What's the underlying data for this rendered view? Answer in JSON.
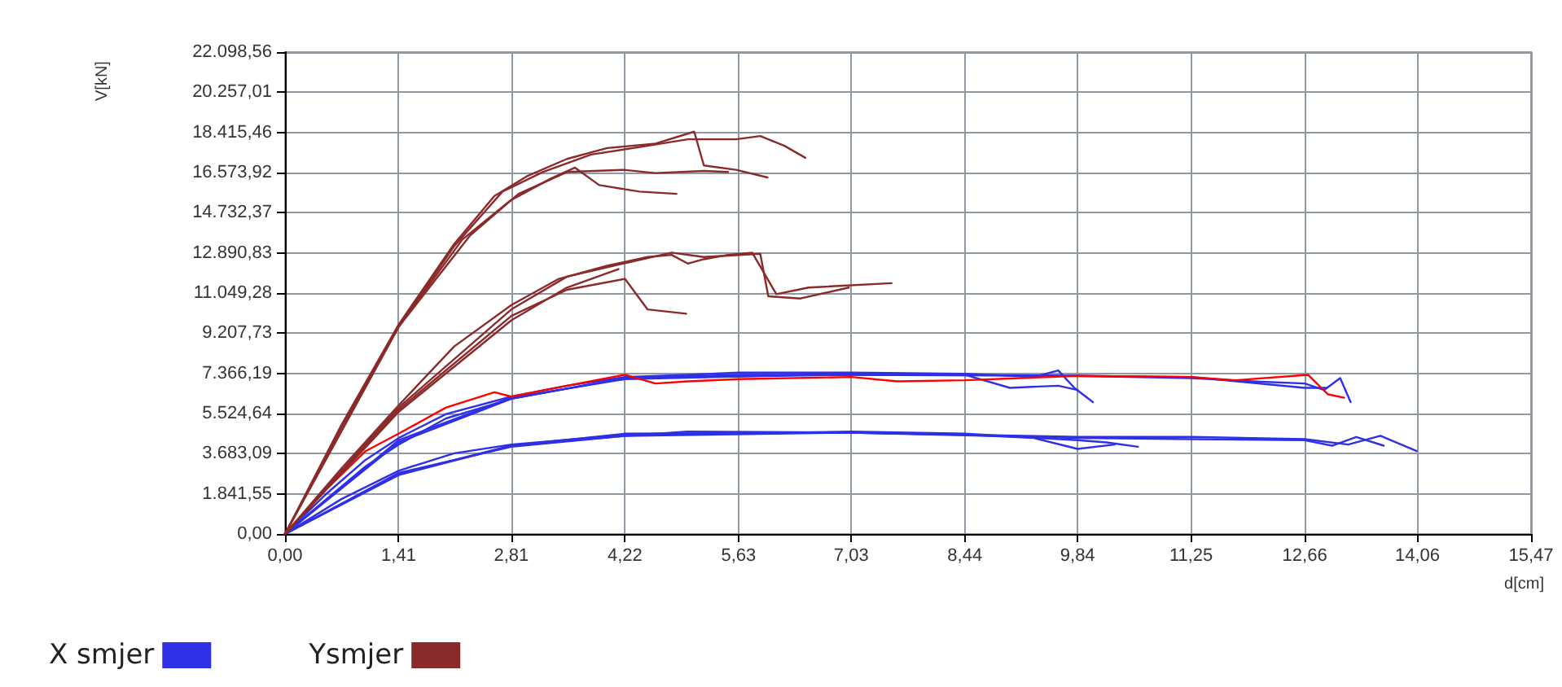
{
  "chart_data": {
    "type": "line",
    "xlabel": "d[cm]",
    "ylabel": "V[kN]",
    "xlim": [
      0,
      15.47
    ],
    "ylim": [
      0,
      22098.56
    ],
    "xticks": [
      {
        "value": 0,
        "label": "0,00"
      },
      {
        "value": 1.41,
        "label": "1,41"
      },
      {
        "value": 2.81,
        "label": "2,81"
      },
      {
        "value": 4.22,
        "label": "4,22"
      },
      {
        "value": 5.63,
        "label": "5,63"
      },
      {
        "value": 7.03,
        "label": "7,03"
      },
      {
        "value": 8.44,
        "label": "8,44"
      },
      {
        "value": 9.84,
        "label": "9,84"
      },
      {
        "value": 11.25,
        "label": "11,25"
      },
      {
        "value": 12.66,
        "label": "12,66"
      },
      {
        "value": 14.06,
        "label": "14,06"
      },
      {
        "value": 15.47,
        "label": "15,47"
      }
    ],
    "yticks": [
      {
        "value": 0,
        "label": "0,00"
      },
      {
        "value": 1841.55,
        "label": "1.841,55"
      },
      {
        "value": 3683.09,
        "label": "3.683,09"
      },
      {
        "value": 5524.64,
        "label": "5.524,64"
      },
      {
        "value": 7366.19,
        "label": "7.366,19"
      },
      {
        "value": 9207.73,
        "label": "9.207,73"
      },
      {
        "value": 11049.28,
        "label": "11.049,28"
      },
      {
        "value": 12890.83,
        "label": "12.890,83"
      },
      {
        "value": 14732.37,
        "label": "14.732,37"
      },
      {
        "value": 16573.92,
        "label": "16.573,92"
      },
      {
        "value": 18415.46,
        "label": "18.415,46"
      },
      {
        "value": 20257.01,
        "label": "20.257,01"
      },
      {
        "value": 22098.56,
        "label": "22.098,56"
      }
    ],
    "grid": true,
    "legend": "bottom left",
    "marker": "none",
    "line_style": "solid",
    "series": [
      {
        "name": "X smjer",
        "color": "#2f2fe6",
        "x": [
          0,
          0.7,
          1.41,
          2.1,
          2.81,
          4.22,
          5.63,
          7.03,
          8.44,
          9.84,
          10.2,
          10.59
        ],
        "values": [
          0,
          1600,
          2900,
          3700,
          4100,
          4550,
          4600,
          4700,
          4600,
          4300,
          4200,
          4000
        ]
      },
      {
        "color": "#2f2fe6",
        "x": [
          0,
          1.41,
          2.81,
          4.22,
          5.0,
          7.03,
          8.44,
          9.3,
          9.84,
          10.3
        ],
        "values": [
          0,
          2800,
          4000,
          4500,
          4700,
          4650,
          4550,
          4400,
          3900,
          4100
        ]
      },
      {
        "color": "#2f2fe6",
        "x": [
          0,
          1.41,
          2.81,
          4.22,
          7.03,
          9.84,
          11.25,
          12.66,
          13.0,
          13.3,
          13.64
        ],
        "values": [
          0,
          2700,
          4050,
          4500,
          4650,
          4400,
          4350,
          4300,
          4050,
          4450,
          4050
        ]
      },
      {
        "color": "#2f2fe6",
        "x": [
          0,
          1.41,
          2.81,
          4.22,
          7.03,
          9.84,
          11.25,
          12.66,
          13.2,
          13.6,
          14.05
        ],
        "values": [
          0,
          2750,
          4050,
          4600,
          4650,
          4450,
          4450,
          4350,
          4100,
          4500,
          3800
        ]
      },
      {
        "color": "#2f2fe6",
        "x": [
          0,
          0.5,
          1.0,
          1.41,
          2.0,
          2.81,
          3.5,
          4.22,
          5.0,
          5.63,
          7.03,
          8.44,
          9.3,
          9.6,
          9.8,
          10.03
        ],
        "values": [
          0,
          1800,
          3400,
          4400,
          5500,
          6300,
          6800,
          7200,
          7300,
          7400,
          7400,
          7350,
          7200,
          7500,
          6700,
          6050
        ]
      },
      {
        "color": "#2f2fe6",
        "x": [
          0,
          1.0,
          1.41,
          2.0,
          2.81,
          4.22,
          5.63,
          7.03,
          8.44,
          9.0,
          9.6,
          9.84
        ],
        "values": [
          0,
          3100,
          4100,
          5300,
          6200,
          7150,
          7300,
          7300,
          7300,
          6700,
          6800,
          6600
        ]
      },
      {
        "color": "#2f2fe6",
        "x": [
          0,
          1.41,
          2.81,
          4.22,
          7.03,
          9.84,
          11.25,
          12.0,
          12.66,
          12.9,
          13.1,
          13.23
        ],
        "values": [
          0,
          4300,
          6250,
          7100,
          7350,
          7250,
          7150,
          7000,
          6900,
          6600,
          7150,
          6050
        ]
      },
      {
        "color": "#2f2fe6",
        "x": [
          0,
          1.41,
          2.81,
          4.22,
          7.03,
          9.84,
          11.25,
          12.66,
          12.93
        ],
        "values": [
          0,
          4200,
          6200,
          7150,
          7300,
          7250,
          7200,
          6700,
          6700
        ]
      },
      {
        "color": "#ff0000",
        "x": [
          0,
          0.5,
          1.0,
          1.41,
          2.0,
          2.6,
          2.81,
          3.5,
          4.22,
          4.6,
          5.0,
          5.63,
          7.03,
          7.6,
          8.44,
          9.84,
          11.25,
          11.8,
          12.7,
          12.95,
          13.15
        ],
        "values": [
          0,
          2000,
          3800,
          4600,
          5800,
          6500,
          6300,
          6800,
          7300,
          6900,
          7000,
          7100,
          7200,
          7000,
          7050,
          7250,
          7200,
          7050,
          7300,
          6400,
          6250
        ]
      },
      {
        "name": "Ysmjer",
        "color": "#8b2a2a",
        "x": [
          0,
          0.7,
          1.41,
          2.1,
          2.6,
          3.0,
          3.5,
          4.0,
          4.6,
          5.08,
          5.2,
          5.6,
          5.99
        ],
        "values": [
          0,
          5000,
          9600,
          13300,
          15500,
          16400,
          17200,
          17700,
          17900,
          18450,
          16900,
          16700,
          16350
        ]
      },
      {
        "color": "#8b2a2a",
        "x": [
          0,
          0.7,
          1.41,
          2.1,
          2.7,
          3.2,
          3.8,
          4.5,
          5.0,
          5.6,
          5.9,
          6.2,
          6.46
        ],
        "values": [
          0,
          4900,
          9500,
          13200,
          15700,
          16600,
          17400,
          17800,
          18100,
          18100,
          18250,
          17800,
          17250
        ]
      },
      {
        "color": "#8b2a2a",
        "x": [
          0,
          1.41,
          2.2,
          2.8,
          3.3,
          3.6,
          3.9,
          4.4,
          4.86
        ],
        "values": [
          0,
          9500,
          13500,
          15300,
          16300,
          16800,
          16000,
          15700,
          15600
        ]
      },
      {
        "color": "#8b2a2a",
        "x": [
          0,
          1.41,
          2.3,
          2.9,
          3.5,
          4.2,
          4.6,
          5.2,
          5.5
        ],
        "values": [
          0,
          9500,
          13700,
          15600,
          16600,
          16700,
          16550,
          16650,
          16600
        ]
      },
      {
        "color": "#8b2a2a",
        "x": [
          0,
          0.7,
          1.41,
          2.1,
          2.81,
          3.4,
          4.0,
          4.5,
          4.8,
          5.0,
          5.2,
          5.5,
          5.8,
          6.1,
          6.5,
          7.53
        ],
        "values": [
          0,
          3000,
          5900,
          8600,
          10500,
          11700,
          12300,
          12700,
          12800,
          12400,
          12600,
          12800,
          12900,
          11000,
          11300,
          11500
        ]
      },
      {
        "color": "#8b2a2a",
        "x": [
          0,
          1.41,
          2.81,
          3.5,
          4.2,
          4.8,
          5.2,
          5.9,
          6.0,
          6.4,
          7.0
        ],
        "values": [
          0,
          5800,
          10300,
          11800,
          12400,
          12900,
          12700,
          12850,
          10900,
          10800,
          11300
        ]
      },
      {
        "color": "#8b2a2a",
        "x": [
          0,
          1.41,
          2.81,
          3.5,
          4.22,
          4.5,
          4.98
        ],
        "values": [
          0,
          5700,
          10000,
          11200,
          11700,
          10300,
          10100
        ]
      },
      {
        "color": "#8b2a2a",
        "x": [
          0,
          1.41,
          2.81,
          3.5,
          4.14
        ],
        "values": [
          0,
          5600,
          9800,
          11300,
          12150
        ]
      }
    ]
  }
}
